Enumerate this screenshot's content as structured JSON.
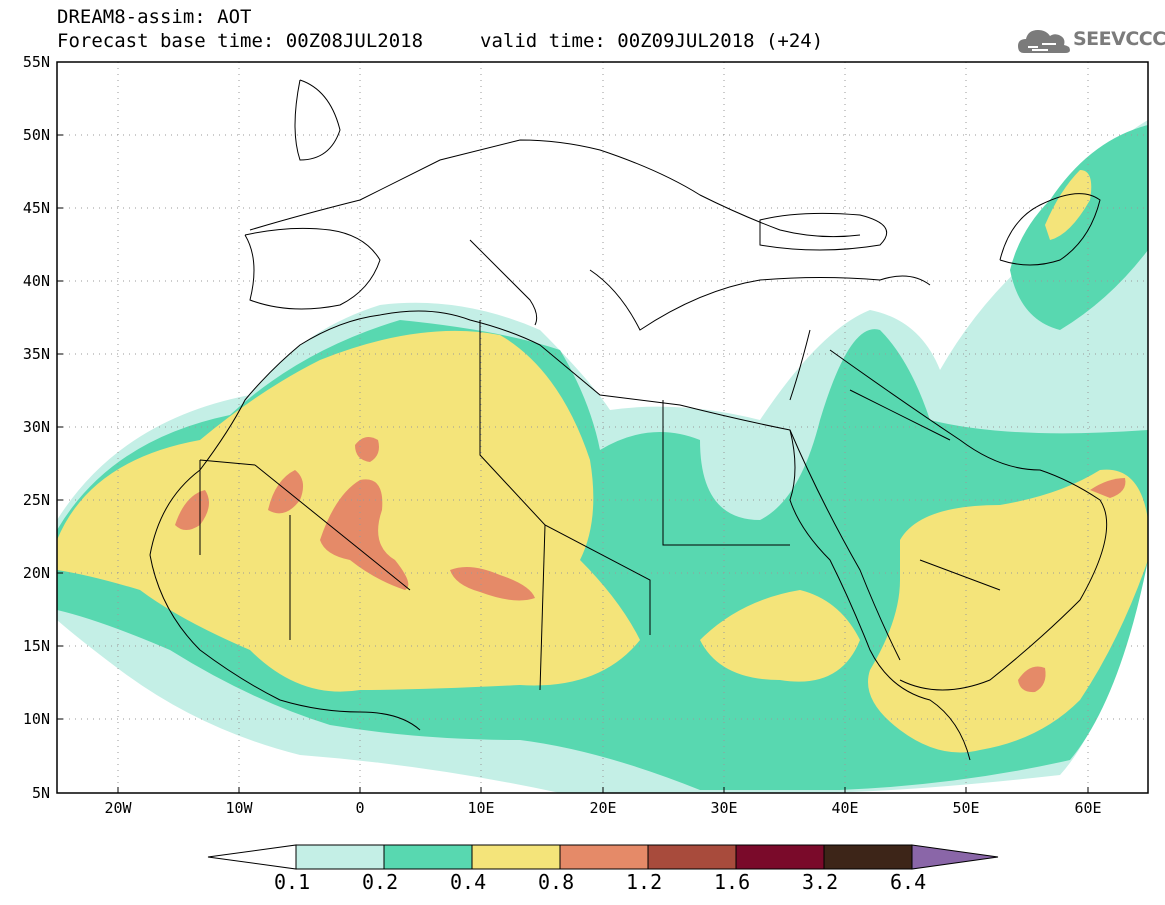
{
  "header": {
    "title": "DREAM8-assim: AOT",
    "base_time": "Forecast base time: 00Z08JUL2018",
    "valid_time": "valid time: 00Z09JUL2018 (+24)"
  },
  "logo": {
    "text": "SEEVCCC",
    "icon": "cloud-logo-icon"
  },
  "map": {
    "variable": "AOT",
    "lon_range": [
      -25,
      65
    ],
    "lat_range": [
      5,
      55
    ],
    "lon_ticks": [
      "20W",
      "10W",
      "0",
      "10E",
      "20E",
      "30E",
      "40E",
      "50E",
      "60E"
    ],
    "lat_ticks": [
      "55N",
      "50N",
      "45N",
      "40N",
      "35N",
      "30N",
      "25N",
      "20N",
      "15N",
      "10N",
      "5N"
    ],
    "grid": "dotted"
  },
  "colorbar": {
    "labels": [
      "0.1",
      "0.2",
      "0.4",
      "0.8",
      "1.2",
      "1.6",
      "3.2",
      "6.4"
    ],
    "colors": [
      "#c4efe6",
      "#58d8b0",
      "#f4e47a",
      "#e58a68",
      "#a84b3c",
      "#7a0a2a",
      "#3d2518",
      "#8a66a8"
    ],
    "extend": "both"
  },
  "level_colors": {
    "lvl1": "#c4efe6",
    "lvl2": "#58d8b0",
    "lvl3": "#f4e47a",
    "lvl4": "#e58a68"
  }
}
